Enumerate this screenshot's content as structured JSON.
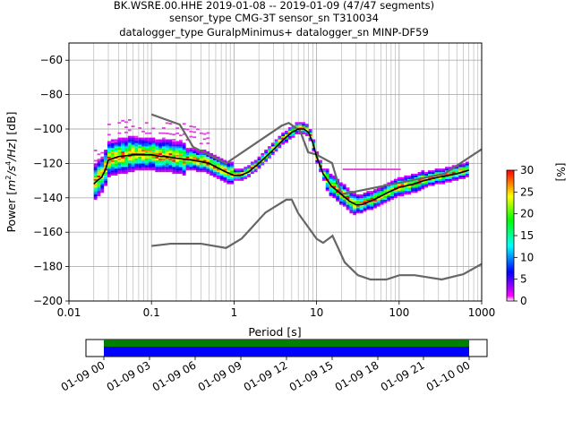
{
  "header": {
    "title_line1": "BK.WSRE.00.HHE   2019-01-08 -- 2019-01-09  (47/47 segments)",
    "title_line2": "sensor_type CMG-3T sensor_sn T310034",
    "title_line3": "datalogger_type GuralpMinimus+ datalogger_sn MINP-DF59"
  },
  "colors": {
    "reference_curve": "#666666",
    "mode_curve": "#000000",
    "coverage_top": "#008000",
    "coverage_bottom": "#0000ff"
  },
  "chart_data": [
    {
      "type": "heatmap",
      "xlabel": "Period [s]",
      "ylabel_parts": [
        "Power [",
        "m",
        "2",
        "/s",
        "4",
        "/Hz",
        "] [dB]"
      ],
      "x_scale": "log",
      "xlim": [
        0.01,
        1000
      ],
      "ylim": [
        -200,
        -50
      ],
      "x_ticks": [
        {
          "value": 0.01,
          "label": "0.01"
        },
        {
          "value": 0.1,
          "label": "0.1"
        },
        {
          "value": 1,
          "label": "1"
        },
        {
          "value": 10,
          "label": "10"
        },
        {
          "value": 100,
          "label": "100"
        },
        {
          "value": 1000,
          "label": "1000"
        }
      ],
      "y_ticks": [
        -60,
        -80,
        -100,
        -120,
        -140,
        -160,
        -180,
        -200
      ],
      "grid": true,
      "colorbar": {
        "label": "[%]",
        "range": [
          0,
          30
        ],
        "ticks": [
          0,
          5,
          10,
          15,
          20,
          25,
          30
        ],
        "colormap": [
          "#ffffff",
          "#ff00ff",
          "#0000ff",
          "#00ffff",
          "#00ff00",
          "#ffff00",
          "#ff0000"
        ]
      },
      "series": [
        {
          "role": "high_noise_model",
          "x": [
            0.1,
            0.22,
            0.32,
            0.8,
            3.8,
            4.6,
            6.3,
            7.9,
            10,
            15.4,
            20,
            354.8,
            10000
          ],
          "y": [
            -91.5,
            -97.4,
            -110.5,
            -120,
            -98,
            -96.5,
            -101,
            -113.5,
            -114.9,
            -119.8,
            -138,
            -126,
            -80
          ]
        },
        {
          "role": "low_noise_model",
          "x": [
            0.1,
            0.17,
            0.4,
            0.8,
            1.24,
            2.4,
            4.3,
            5,
            6,
            10,
            12,
            15.6,
            21.9,
            31.6,
            45,
            70,
            101,
            154,
            328,
            600,
            10000
          ],
          "y": [
            -168,
            -166.7,
            -166.7,
            -169.2,
            -163.7,
            -148.6,
            -141.1,
            -141.1,
            -149,
            -163.8,
            -166.2,
            -162.1,
            -177.5,
            -185,
            -187.5,
            -187.5,
            -185,
            -185,
            -187.5,
            -184.4,
            -151.5
          ]
        },
        {
          "role": "mode",
          "x": [
            0.02,
            0.022,
            0.025,
            0.028,
            0.03,
            0.035,
            0.04,
            0.05,
            0.06,
            0.08,
            0.1,
            0.13,
            0.15,
            0.2,
            0.3,
            0.4,
            0.5,
            0.6,
            0.8,
            1.0,
            1.2,
            1.5,
            2,
            3,
            4,
            5,
            6,
            7,
            8,
            9,
            10,
            12,
            15,
            20,
            25,
            30,
            35,
            40,
            50,
            60,
            80,
            100,
            150,
            200,
            300,
            400,
            500,
            700
          ],
          "y": [
            -132,
            -130,
            -128,
            -123,
            -118,
            -117,
            -116,
            -115.5,
            -115,
            -115,
            -115,
            -116,
            -116,
            -117,
            -118,
            -119,
            -120,
            -122,
            -125,
            -127,
            -127,
            -125,
            -120,
            -112,
            -106,
            -102,
            -100,
            -100,
            -102,
            -108,
            -116,
            -126,
            -133,
            -138,
            -142,
            -144,
            -144,
            -143,
            -141,
            -139,
            -136,
            -134,
            -132,
            -130,
            -128,
            -127,
            -126,
            -124
          ]
        }
      ]
    },
    {
      "type": "bar",
      "role": "data_coverage",
      "x_ticks": [
        "01-09 00",
        "01-09 03",
        "01-09 06",
        "01-09 09",
        "01-09 12",
        "01-09 15",
        "01-09 18",
        "01-09 21",
        "01-10 00"
      ]
    }
  ]
}
